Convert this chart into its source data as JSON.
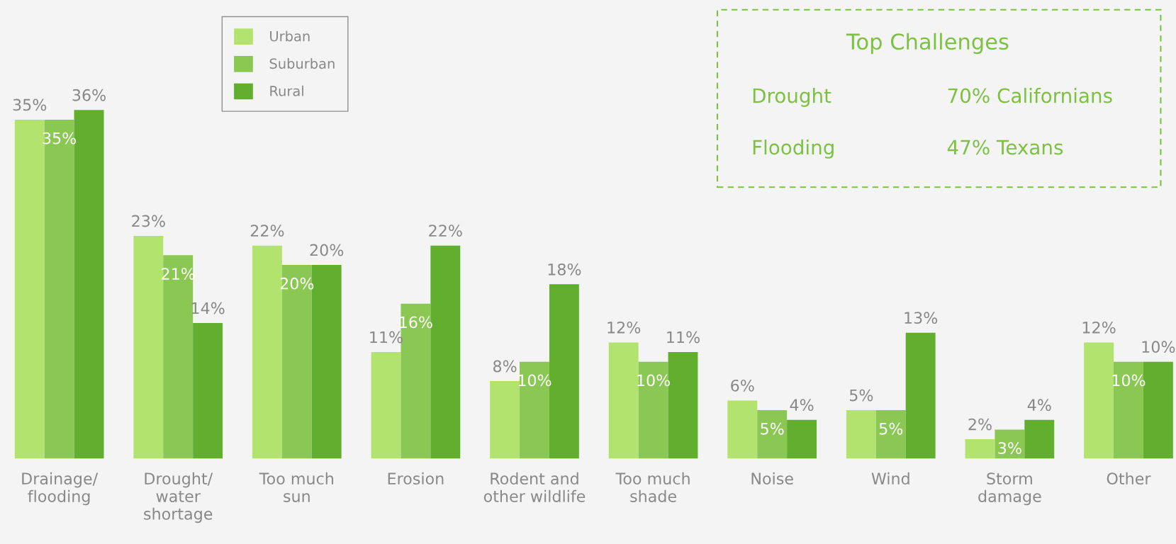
{
  "chart_data": {
    "type": "bar",
    "categories": [
      "Drainage/\nflooding",
      "Drought/\nwater\nshortage",
      "Too much\nsun",
      "Erosion",
      "Rodent and\nother wildlife",
      "Too much\nshade",
      "Noise",
      "Wind",
      "Storm\ndamage",
      "Other"
    ],
    "series": [
      {
        "name": "Urban",
        "color": "#b3e36f",
        "values": [
          35,
          23,
          22,
          11,
          8,
          12,
          6,
          5,
          2,
          12
        ],
        "value_labels": [
          "35%",
          "23%",
          "22%",
          "11%",
          "8%",
          "12%",
          "6%",
          "5%",
          "2%",
          "12%"
        ]
      },
      {
        "name": "Suburban",
        "color": "#8bc853",
        "values": [
          35,
          21,
          20,
          16,
          10,
          10,
          5,
          5,
          3,
          10
        ],
        "value_labels": [
          "35%",
          "21%",
          "20%",
          "16%",
          "10%",
          "10%",
          "5%",
          "5%",
          "3%",
          "10%"
        ]
      },
      {
        "name": "Rural",
        "color": "#62ae2f",
        "values": [
          36,
          14,
          20,
          22,
          18,
          11,
          4,
          13,
          4,
          10
        ],
        "value_labels": [
          "36%",
          "14%",
          "20%",
          "22%",
          "18%",
          "11%",
          "4%",
          "13%",
          "4%",
          "10%"
        ]
      }
    ],
    "legend": "top",
    "grid": false,
    "annotations": [
      "Top Challenges",
      "Drought",
      "70% Californians",
      "Flooding",
      "47% Texans"
    ]
  }
}
